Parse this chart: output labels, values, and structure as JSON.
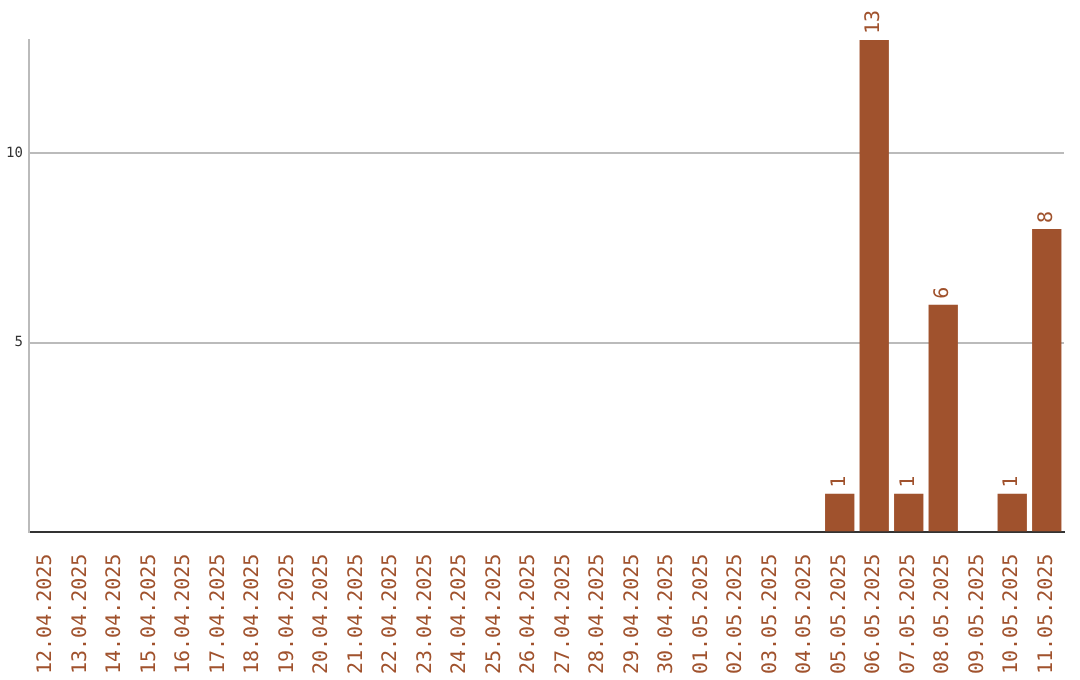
{
  "chart_data": {
    "type": "bar",
    "categories": [
      "12.04.2025",
      "13.04.2025",
      "14.04.2025",
      "15.04.2025",
      "16.04.2025",
      "17.04.2025",
      "18.04.2025",
      "19.04.2025",
      "20.04.2025",
      "21.04.2025",
      "22.04.2025",
      "23.04.2025",
      "24.04.2025",
      "25.04.2025",
      "26.04.2025",
      "27.04.2025",
      "28.04.2025",
      "29.04.2025",
      "30.04.2025",
      "01.05.2025",
      "02.05.2025",
      "03.05.2025",
      "04.05.2025",
      "05.05.2025",
      "06.05.2025",
      "07.05.2025",
      "08.05.2025",
      "09.05.2025",
      "10.05.2025",
      "11.05.2025"
    ],
    "values": [
      0,
      0,
      0,
      0,
      0,
      0,
      0,
      0,
      0,
      0,
      0,
      0,
      0,
      0,
      0,
      0,
      0,
      0,
      0,
      0,
      0,
      0,
      0,
      1,
      13,
      1,
      6,
      0,
      1,
      8
    ],
    "value_labels": [
      null,
      null,
      null,
      null,
      null,
      null,
      null,
      null,
      null,
      null,
      null,
      null,
      null,
      null,
      null,
      null,
      null,
      null,
      null,
      null,
      null,
      null,
      null,
      "1",
      "13",
      "1",
      "6",
      null,
      "1",
      "8"
    ],
    "color": "#a0522d",
    "ylim": [
      0,
      13
    ],
    "yticks": [
      5,
      10
    ],
    "grid": "y",
    "legend": false
  }
}
